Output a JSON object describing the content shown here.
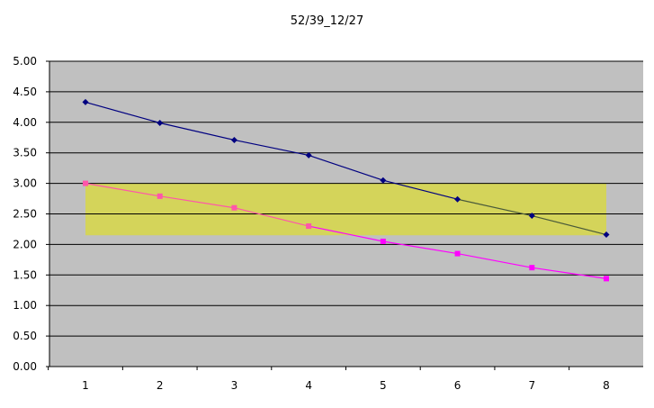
{
  "chart_data": {
    "type": "line",
    "title": "52/39_12/27",
    "xlabel": "",
    "ylabel": "",
    "categories": [
      "1",
      "2",
      "3",
      "4",
      "5",
      "6",
      "7",
      "8"
    ],
    "ylim": [
      0,
      5
    ],
    "yticks": [
      "0.00",
      "0.50",
      "1.00",
      "1.50",
      "2.00",
      "2.50",
      "3.00",
      "3.50",
      "4.00",
      "4.50",
      "5.00"
    ],
    "grid": true,
    "plot_background": "#c0c0c0",
    "band": {
      "y_from": 2.15,
      "y_to": 3.0,
      "x_from": 1,
      "x_to": 8,
      "color": "#d4d45a"
    },
    "series": [
      {
        "values": [
          4.33,
          3.99,
          3.71,
          3.46,
          3.05,
          2.74,
          2.47,
          2.16
        ],
        "color": "#000080",
        "color_in_band": "#4a5a3a",
        "marker": "diamond"
      },
      {
        "values": [
          3.0,
          2.79,
          2.6,
          2.3,
          2.05,
          1.85,
          1.62,
          1.44
        ],
        "color": "#ff00ff",
        "color_in_band": "#ff55aa",
        "marker": "square"
      }
    ]
  }
}
